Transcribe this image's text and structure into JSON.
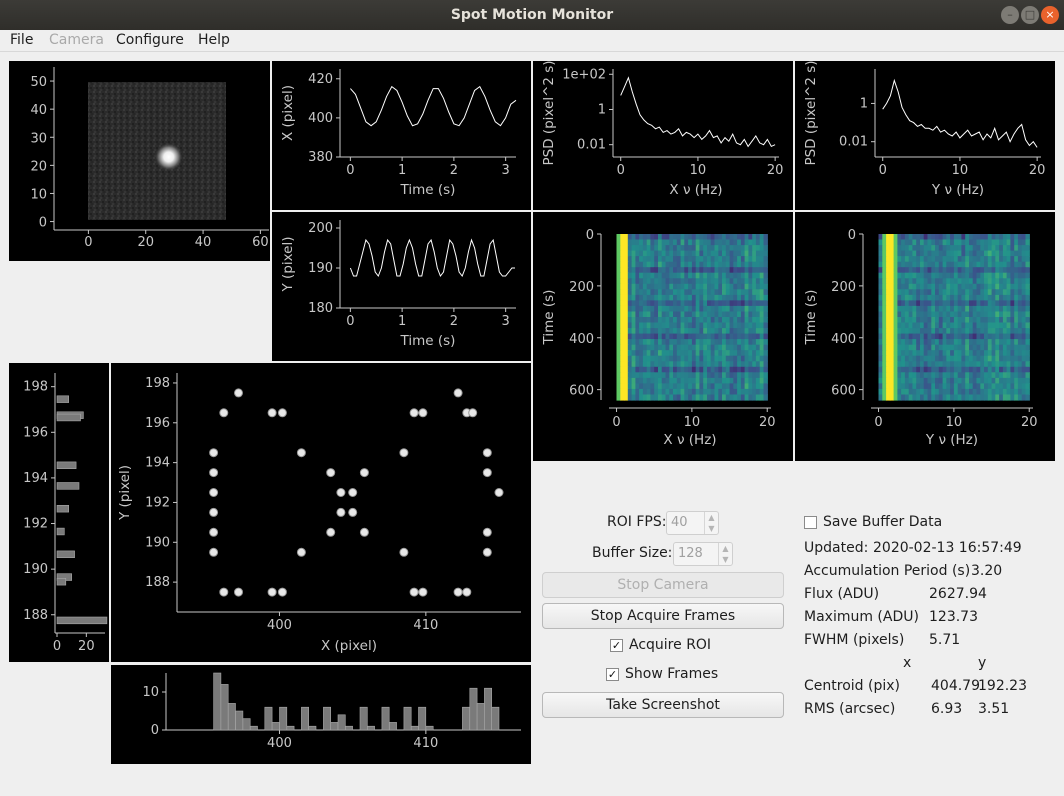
{
  "window": {
    "title": "Spot Motion Monitor",
    "minimize": "–",
    "maximize": "□",
    "close": "×"
  },
  "menu": [
    "File",
    "Camera",
    "Configure",
    "Help"
  ],
  "plots": {
    "camera": {
      "yticks": [
        "50",
        "40",
        "30",
        "20",
        "10",
        "0"
      ],
      "xticks": [
        "0",
        "20",
        "40",
        "60"
      ]
    },
    "x_pos": {
      "ylabel": "X (pixel)",
      "xlabel": "Time (s)",
      "yticks": [
        "420",
        "400",
        "380"
      ],
      "xticks": [
        "0",
        "1",
        "2",
        "3"
      ]
    },
    "y_pos": {
      "ylabel": "Y (pixel)",
      "xlabel": "Time (s)",
      "yticks": [
        "200",
        "190",
        "180"
      ],
      "xticks": [
        "0",
        "1",
        "2",
        "3"
      ]
    },
    "x_psd": {
      "ylabel": "PSD (pixel^2 s)",
      "xlabel": "X ν (Hz)",
      "yticks": [
        "1e+02",
        "1",
        "0.01"
      ],
      "xticks": [
        "0",
        "10",
        "20"
      ]
    },
    "y_psd": {
      "ylabel": "PSD (pixel^2 s)",
      "xlabel": "Y ν (Hz)",
      "yticks": [
        "1",
        "0.01"
      ],
      "xticks": [
        "0",
        "10",
        "20"
      ]
    },
    "x_wf": {
      "ylabel": "Time (s)",
      "xlabel": "X ν (Hz)",
      "yticks": [
        "0",
        "200",
        "400",
        "600"
      ],
      "xticks": [
        "0",
        "10",
        "20"
      ]
    },
    "y_wf": {
      "ylabel": "Time (s)",
      "xlabel": "Y ν (Hz)",
      "yticks": [
        "0",
        "200",
        "400",
        "600"
      ],
      "xticks": [
        "0",
        "10",
        "20"
      ]
    },
    "scatter": {
      "ylabel": "Y (pixel)",
      "xlabel": "X (pixel)",
      "yticks": [
        "198",
        "196",
        "194",
        "192",
        "190",
        "188"
      ],
      "xticks": [
        "400",
        "410"
      ]
    },
    "yhist": {
      "yticks": [
        "198",
        "196",
        "194",
        "192",
        "190",
        "188"
      ],
      "xticks": [
        "0",
        "20"
      ]
    },
    "xhist": {
      "yticks": [
        "10",
        "0"
      ],
      "xticks": [
        "400",
        "410"
      ]
    }
  },
  "controls": {
    "roi_fps_label": "ROI FPS:",
    "roi_fps_value": "40",
    "buffer_size_label": "Buffer Size:",
    "buffer_size_value": "128",
    "stop_camera": "Stop Camera",
    "stop_acquire": "Stop Acquire Frames",
    "acquire_roi": "Acquire ROI",
    "show_frames": "Show Frames",
    "screenshot": "Take Screenshot",
    "check_mark": "✓"
  },
  "info": {
    "save_buffer": "Save Buffer Data",
    "updated_label": "Updated:",
    "updated_value": "2020-02-13 16:57:49",
    "accum_label": "Accumulation Period (s)",
    "accum_value": "3.20",
    "flux_label": "Flux (ADU)",
    "flux_value": "2627.94",
    "max_label": "Maximum (ADU)",
    "max_value": "123.73",
    "fwhm_label": "FWHM (pixels)",
    "fwhm_value": "5.71",
    "col_x": "x",
    "col_y": "y",
    "centroid_label": "Centroid (pix)",
    "centroid_x": "404.79",
    "centroid_y": "192.23",
    "rms_label": "RMS (arcsec)",
    "rms_x": "6.93",
    "rms_y": "3.51"
  },
  "chart_data": [
    {
      "type": "line",
      "id": "x_pos",
      "xlabel": "Time (s)",
      "ylabel": "X (pixel)",
      "xlim": [
        -0.2,
        3.2
      ],
      "ylim": [
        380,
        425
      ],
      "x": [
        0,
        0.1,
        0.2,
        0.3,
        0.4,
        0.5,
        0.6,
        0.7,
        0.8,
        0.9,
        1.0,
        1.1,
        1.2,
        1.3,
        1.4,
        1.5,
        1.6,
        1.7,
        1.8,
        1.9,
        2.0,
        2.1,
        2.2,
        2.3,
        2.4,
        2.5,
        2.6,
        2.7,
        2.8,
        2.9,
        3.0,
        3.1,
        3.2
      ],
      "y": [
        415,
        412,
        405,
        398,
        396,
        398,
        404,
        411,
        416,
        414,
        408,
        401,
        396,
        397,
        402,
        409,
        415,
        415,
        410,
        403,
        397,
        396,
        400,
        407,
        414,
        416,
        411,
        404,
        398,
        396,
        400,
        407,
        409
      ]
    },
    {
      "type": "line",
      "id": "y_pos",
      "xlabel": "Time (s)",
      "ylabel": "Y (pixel)",
      "xlim": [
        -0.2,
        3.2
      ],
      "ylim": [
        180,
        202
      ],
      "x": [
        0,
        0.06,
        0.12,
        0.18,
        0.24,
        0.3,
        0.36,
        0.42,
        0.48,
        0.54,
        0.6,
        0.66,
        0.72,
        0.78,
        0.84,
        0.9,
        0.96,
        1.02,
        1.08,
        1.14,
        1.2,
        1.26,
        1.32,
        1.38,
        1.44,
        1.5,
        1.56,
        1.62,
        1.68,
        1.74,
        1.8,
        1.86,
        1.92,
        1.98,
        2.04,
        2.1,
        2.16,
        2.22,
        2.28,
        2.34,
        2.4,
        2.46,
        2.52,
        2.58,
        2.64,
        2.7,
        2.76,
        2.82,
        2.88,
        2.94,
        3.0,
        3.06,
        3.12,
        3.18
      ],
      "y": [
        190,
        188,
        188,
        191,
        194,
        197,
        196,
        193,
        189,
        188,
        190,
        194,
        197,
        196,
        192,
        188,
        188,
        191,
        195,
        197,
        195,
        191,
        188,
        188,
        192,
        196,
        197,
        194,
        190,
        188,
        189,
        193,
        197,
        196,
        193,
        189,
        188,
        190,
        194,
        197,
        195,
        191,
        188,
        188,
        192,
        196,
        197,
        193,
        189,
        188,
        188,
        189,
        190,
        190
      ]
    },
    {
      "type": "line",
      "id": "x_psd",
      "xlabel": "X ν (Hz)",
      "ylabel": "PSD (pixel^2 s)",
      "xlim": [
        -1,
        20.5
      ],
      "ylim_log10": [
        -2.7,
        2.3
      ],
      "x": [
        0,
        0.5,
        1,
        1.5,
        2,
        2.5,
        3,
        3.5,
        4,
        4.5,
        5,
        5.5,
        6,
        6.5,
        7,
        7.5,
        8,
        8.5,
        9,
        9.5,
        10,
        10.5,
        11,
        11.5,
        12,
        12.5,
        13,
        13.5,
        14,
        14.5,
        15,
        15.5,
        16,
        16.5,
        17,
        17.5,
        18,
        18.5,
        19,
        19.5,
        20
      ],
      "log10": [
        0.8,
        1.3,
        1.8,
        1.0,
        0.3,
        -0.3,
        -0.6,
        -0.8,
        -0.9,
        -1.1,
        -1.0,
        -1.3,
        -1.2,
        -1.4,
        -1.3,
        -1.1,
        -1.5,
        -1.3,
        -1.4,
        -1.6,
        -1.4,
        -1.7,
        -1.5,
        -1.2,
        -1.6,
        -1.5,
        -1.9,
        -1.6,
        -1.8,
        -1.4,
        -1.9,
        -2.0,
        -1.7,
        -2.1,
        -1.8,
        -1.5,
        -1.9,
        -2.0,
        -1.7,
        -2.1,
        -2.0
      ]
    },
    {
      "type": "line",
      "id": "y_psd",
      "xlabel": "Y ν (Hz)",
      "ylabel": "PSD (pixel^2 s)",
      "xlim": [
        -1,
        20.5
      ],
      "ylim_log10": [
        -2.8,
        1.8
      ],
      "x": [
        0,
        0.5,
        1,
        1.5,
        2,
        2.5,
        3,
        3.5,
        4,
        4.5,
        5,
        5.5,
        6,
        6.5,
        7,
        7.5,
        8,
        8.5,
        9,
        9.5,
        10,
        10.5,
        11,
        11.5,
        12,
        12.5,
        13,
        13.5,
        14,
        14.5,
        15,
        15.5,
        16,
        16.5,
        17,
        17.5,
        18,
        18.5,
        19,
        19.5,
        20
      ],
      "log10": [
        -0.3,
        0.0,
        0.4,
        1.2,
        0.6,
        -0.2,
        -0.6,
        -0.9,
        -1.0,
        -1.2,
        -1.1,
        -1.3,
        -1.3,
        -1.4,
        -1.2,
        -1.5,
        -1.4,
        -1.6,
        -1.7,
        -1.5,
        -1.8,
        -1.6,
        -1.4,
        -1.7,
        -1.6,
        -1.5,
        -1.9,
        -1.6,
        -1.8,
        -1.3,
        -1.9,
        -1.7,
        -1.5,
        -2.0,
        -1.6,
        -1.3,
        -1.1,
        -1.9,
        -2.2,
        -2.0,
        -2.3
      ]
    },
    {
      "type": "heatmap",
      "id": "x_wf",
      "xlabel": "X ν (Hz)",
      "ylabel": "Time (s)",
      "xlim": [
        -1,
        20.5
      ],
      "ylim": [
        0,
        640
      ],
      "peak_hz": 0.8
    },
    {
      "type": "heatmap",
      "id": "y_wf",
      "xlabel": "Y ν (Hz)",
      "ylabel": "Time (s)",
      "xlim": [
        -1,
        20.5
      ],
      "ylim": [
        0,
        640
      ],
      "peak_hz": 1.5
    },
    {
      "type": "scatter",
      "id": "scatter",
      "xlabel": "X (pixel)",
      "ylabel": "Y (pixel)",
      "xlim": [
        393,
        416.5
      ],
      "ylim": [
        186.5,
        198.5
      ],
      "points": [
        [
          395.5,
          194.5
        ],
        [
          395.5,
          193.5
        ],
        [
          395.5,
          192.5
        ],
        [
          395.5,
          191.5
        ],
        [
          395.5,
          190.5
        ],
        [
          395.5,
          189.5
        ],
        [
          396.2,
          196.5
        ],
        [
          396.2,
          187.5
        ],
        [
          397.2,
          197.5
        ],
        [
          397.2,
          187.5
        ],
        [
          399.5,
          196.5
        ],
        [
          399.5,
          187.5
        ],
        [
          400.2,
          196.5
        ],
        [
          400.2,
          187.5
        ],
        [
          401.5,
          194.5
        ],
        [
          401.5,
          189.5
        ],
        [
          403.5,
          193.5
        ],
        [
          403.5,
          190.5
        ],
        [
          404.2,
          192.5
        ],
        [
          404.2,
          191.5
        ],
        [
          405,
          192.5
        ],
        [
          405,
          191.5
        ],
        [
          405.8,
          193.5
        ],
        [
          405.8,
          190.5
        ],
        [
          408.5,
          194.5
        ],
        [
          408.5,
          189.5
        ],
        [
          409.2,
          196.5
        ],
        [
          409.2,
          187.5
        ],
        [
          409.8,
          196.5
        ],
        [
          409.8,
          187.5
        ],
        [
          412.2,
          197.5
        ],
        [
          412.2,
          187.5
        ],
        [
          412.8,
          196.5
        ],
        [
          412.8,
          187.5
        ],
        [
          413.2,
          196.5
        ],
        [
          414.2,
          194.5
        ],
        [
          414.2,
          193.5
        ],
        [
          414.2,
          190.5
        ],
        [
          414.2,
          189.5
        ],
        [
          415,
          192.5
        ]
      ]
    },
    {
      "type": "bar",
      "id": "xhist",
      "xlabel": "",
      "ylabel": "",
      "xlim": [
        393,
        416.5
      ],
      "ylim": [
        0,
        15
      ],
      "bins": [
        395.5,
        396,
        396.5,
        397,
        397.5,
        398,
        399,
        399.5,
        400,
        400.5,
        401.5,
        402,
        403,
        403.5,
        404,
        404.5,
        405.5,
        406,
        407,
        407.5,
        408.5,
        409,
        409.5,
        410,
        412.5,
        413,
        413.5,
        414,
        414.5
      ],
      "counts": [
        15,
        12,
        7,
        5,
        3,
        1,
        6,
        2,
        6,
        1,
        6,
        1,
        6,
        2,
        4,
        1,
        6,
        1,
        6,
        2,
        6,
        1,
        6,
        1,
        6,
        11,
        7,
        11,
        6
      ]
    },
    {
      "type": "bar",
      "id": "yhist",
      "xlabel": "",
      "ylabel": "",
      "xlim": [
        0,
        30
      ],
      "ylim": [
        187.2,
        198.6
      ],
      "orientation": "horizontal",
      "bins": [
        197.3,
        196.6,
        196.5,
        194.4,
        193.5,
        192.5,
        191.5,
        190.5,
        189.5,
        189.3,
        187.6
      ],
      "counts": [
        8,
        18,
        16,
        13,
        15,
        8,
        5,
        12,
        10,
        6,
        34
      ]
    },
    {
      "type": "heatmap",
      "id": "camera",
      "xlabel": "",
      "ylabel": "",
      "xlim": [
        -12,
        63
      ],
      "ylim": [
        -3,
        55
      ],
      "spot": [
        28,
        23
      ]
    }
  ]
}
